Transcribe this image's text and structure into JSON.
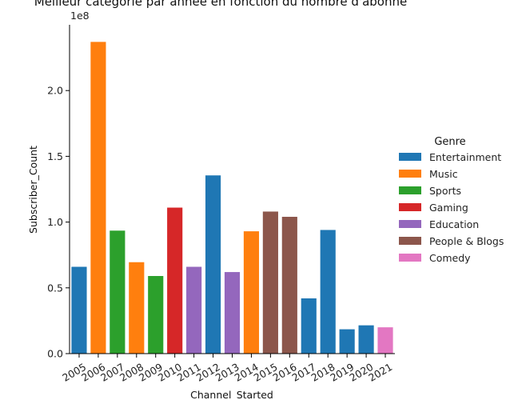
{
  "chart_data": {
    "type": "bar",
    "title": "Meilleur catégorie par année en fonction du nombre d'abonné",
    "xlabel": "Channel_Started",
    "ylabel": "Subscriber_Count",
    "y_multiplier_label": "1e8",
    "ylim": [
      0,
      250000000
    ],
    "yticks": [
      0,
      50000000,
      100000000,
      150000000,
      200000000
    ],
    "ytick_labels": [
      "0.0",
      "0.5",
      "1.0",
      "1.5",
      "2.0"
    ],
    "grid": false,
    "legend_position": "right",
    "legend_title": "Genre",
    "legend": [
      {
        "name": "Entertainment",
        "color": "#1f77b4"
      },
      {
        "name": "Music",
        "color": "#ff7f0e"
      },
      {
        "name": "Sports",
        "color": "#2ca02c"
      },
      {
        "name": "Gaming",
        "color": "#d62728"
      },
      {
        "name": "Education",
        "color": "#9467bd"
      },
      {
        "name": "People & Blogs",
        "color": "#8c564b"
      },
      {
        "name": "Comedy",
        "color": "#e377c2"
      }
    ],
    "categories": [
      "2005",
      "2006",
      "2007",
      "2008",
      "2009",
      "2010",
      "2011",
      "2012",
      "2013",
      "2014",
      "2015",
      "2016",
      "2017",
      "2018",
      "2019",
      "2020",
      "2021"
    ],
    "bars": [
      {
        "x": "2005",
        "genre": "Entertainment",
        "value": 66000000
      },
      {
        "x": "2006",
        "genre": "Music",
        "value": 237000000
      },
      {
        "x": "2007",
        "genre": "Sports",
        "value": 93500000
      },
      {
        "x": "2008",
        "genre": "Music",
        "value": 69500000
      },
      {
        "x": "2009",
        "genre": "Sports",
        "value": 59000000
      },
      {
        "x": "2010",
        "genre": "Gaming",
        "value": 111000000
      },
      {
        "x": "2011",
        "genre": "Education",
        "value": 66000000
      },
      {
        "x": "2012",
        "genre": "Entertainment",
        "value": 135500000
      },
      {
        "x": "2013",
        "genre": "Education",
        "value": 62000000
      },
      {
        "x": "2014",
        "genre": "Music",
        "value": 93000000
      },
      {
        "x": "2015",
        "genre": "People & Blogs",
        "value": 108000000
      },
      {
        "x": "2016",
        "genre": "People & Blogs",
        "value": 104000000
      },
      {
        "x": "2017",
        "genre": "Entertainment",
        "value": 42000000
      },
      {
        "x": "2018",
        "genre": "Entertainment",
        "value": 94000000
      },
      {
        "x": "2019",
        "genre": "Entertainment",
        "value": 18500000
      },
      {
        "x": "2020",
        "genre": "Entertainment",
        "value": 21500000
      },
      {
        "x": "2021",
        "genre": "Comedy",
        "value": 20000000
      }
    ]
  }
}
